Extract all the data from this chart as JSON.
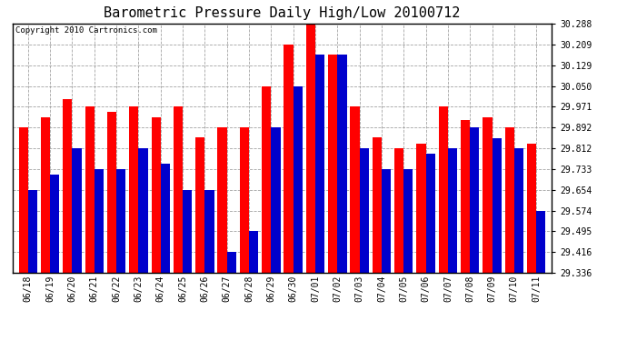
{
  "title": "Barometric Pressure Daily High/Low 20100712",
  "copyright": "Copyright 2010 Cartronics.com",
  "dates": [
    "06/18",
    "06/19",
    "06/20",
    "06/21",
    "06/22",
    "06/23",
    "06/24",
    "06/25",
    "06/26",
    "06/27",
    "06/28",
    "06/29",
    "06/30",
    "07/01",
    "07/02",
    "07/03",
    "07/04",
    "07/05",
    "07/06",
    "07/07",
    "07/08",
    "07/09",
    "07/10",
    "07/11"
  ],
  "highs": [
    29.892,
    29.932,
    30.0,
    29.971,
    29.95,
    29.971,
    29.932,
    29.971,
    29.854,
    29.892,
    29.893,
    30.05,
    30.209,
    30.288,
    30.17,
    29.971,
    29.854,
    29.812,
    29.83,
    29.971,
    29.92,
    29.932,
    29.892,
    29.83
  ],
  "lows": [
    29.654,
    29.712,
    29.812,
    29.733,
    29.733,
    29.812,
    29.752,
    29.654,
    29.654,
    29.416,
    29.495,
    29.892,
    30.05,
    30.17,
    30.17,
    29.812,
    29.733,
    29.733,
    29.79,
    29.812,
    29.892,
    29.852,
    29.812,
    29.574
  ],
  "y_ticks": [
    29.336,
    29.416,
    29.495,
    29.574,
    29.654,
    29.733,
    29.812,
    29.892,
    29.971,
    30.05,
    30.129,
    30.209,
    30.288
  ],
  "ymin": 29.336,
  "ymax": 30.288,
  "bar_width": 0.42,
  "high_color": "#ff0000",
  "low_color": "#0000cc",
  "background_color": "#ffffff",
  "plot_bg_color": "#ffffff",
  "grid_color": "#999999",
  "title_fontsize": 11,
  "tick_fontsize": 7,
  "copyright_fontsize": 6.5
}
